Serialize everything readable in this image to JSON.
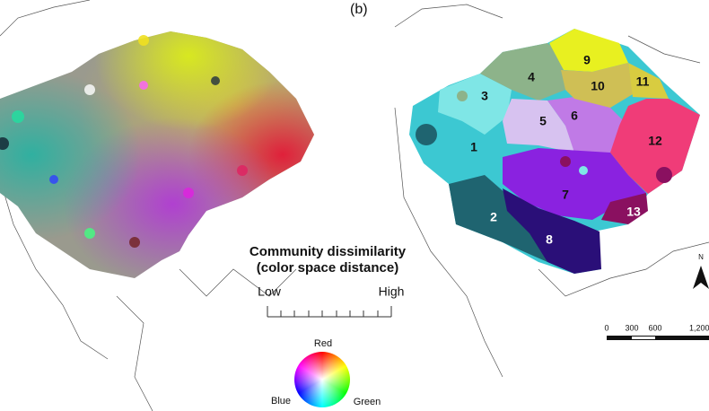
{
  "panel_label": "(b)",
  "regions": [
    {
      "label": "1"
    },
    {
      "label": "2"
    },
    {
      "label": "3"
    },
    {
      "label": "4"
    },
    {
      "label": "5"
    },
    {
      "label": "6"
    },
    {
      "label": "7"
    },
    {
      "label": "8"
    },
    {
      "label": "9"
    },
    {
      "label": "10"
    },
    {
      "label": "11"
    },
    {
      "label": "12"
    },
    {
      "label": "13"
    }
  ],
  "legend": {
    "title": "Community dissimilarity",
    "subtitle": "(color space distance)",
    "low": "Low",
    "high": "High"
  },
  "color_wheel": {
    "top": "Red",
    "left": "Blue",
    "right": "Green"
  },
  "north": "N",
  "scale_bar": {
    "ticks": [
      "0",
      "300",
      "600",
      "1,200"
    ]
  }
}
